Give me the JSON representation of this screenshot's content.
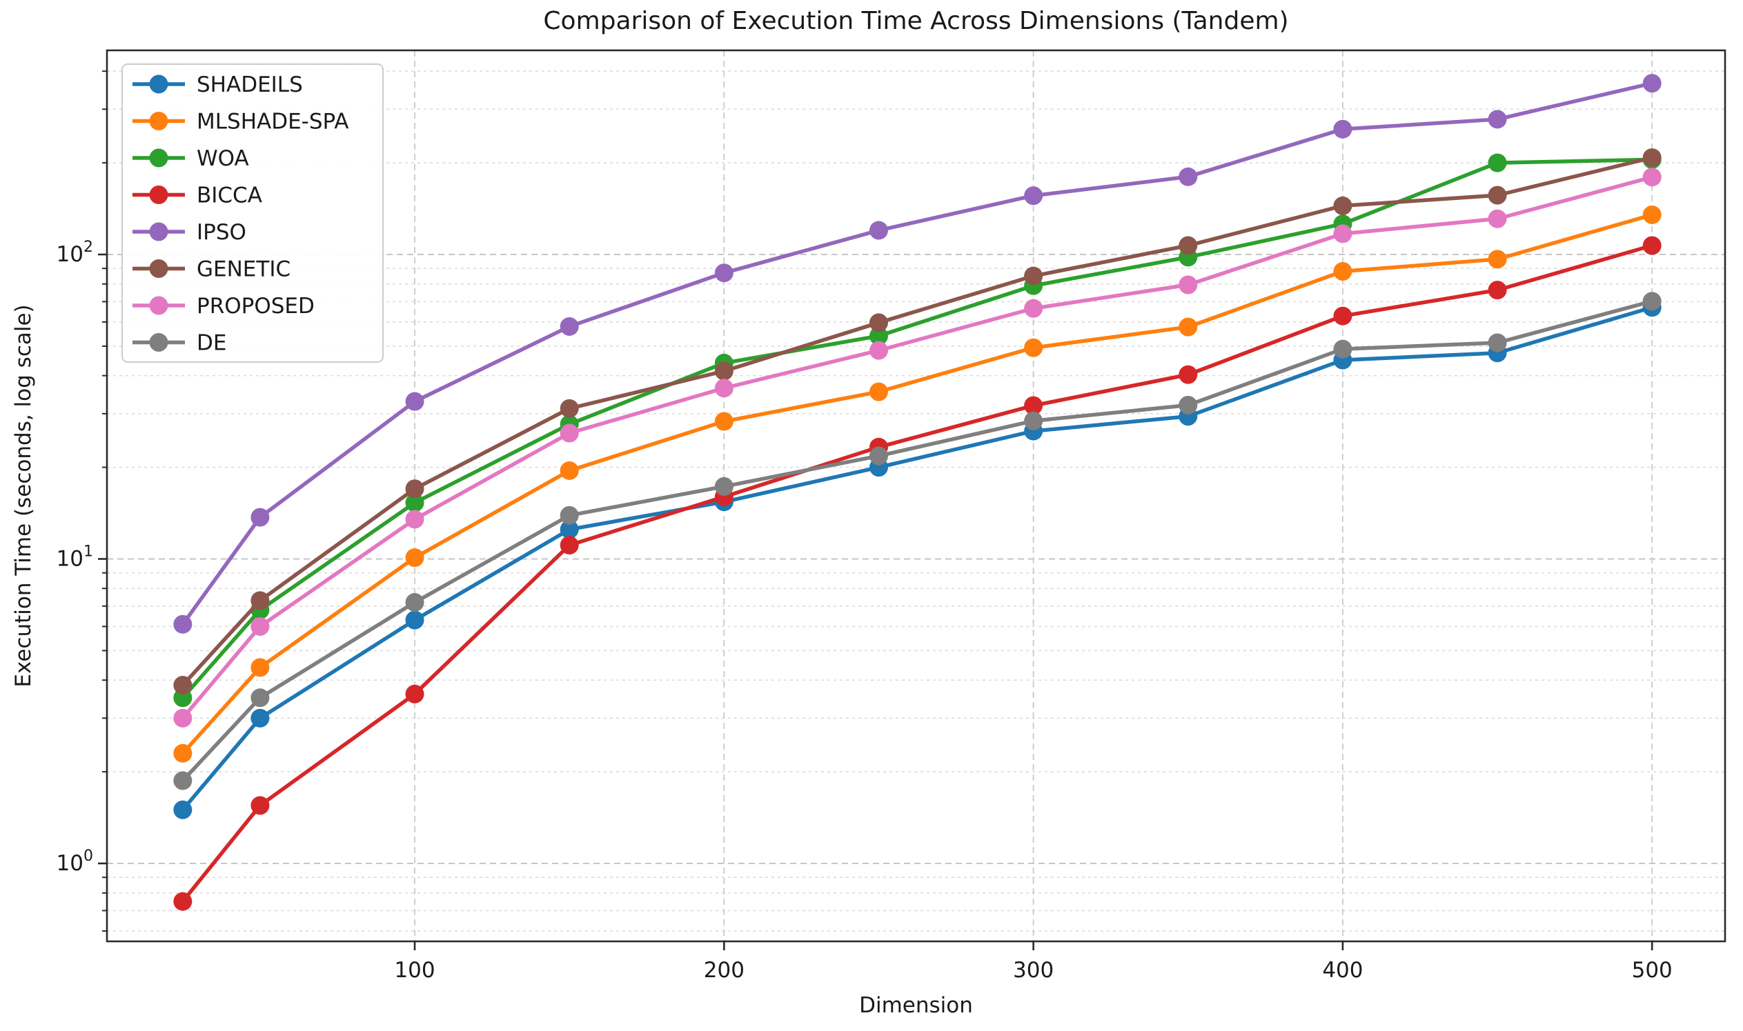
{
  "chart_data": {
    "type": "line",
    "title": "Comparison of Execution Time Across Dimensions (Tandem)",
    "xlabel": "Dimension",
    "ylabel": "Execution Time (seconds, log scale)",
    "x": [
      25,
      50,
      100,
      150,
      200,
      250,
      300,
      350,
      400,
      450,
      500
    ],
    "x_ticks": [
      100,
      200,
      300,
      400,
      500
    ],
    "y_scale": "log",
    "y_ticks": [
      {
        "value": 1,
        "base": "10",
        "exp": "0"
      },
      {
        "value": 10,
        "base": "10",
        "exp": "1"
      },
      {
        "value": 100,
        "base": "10",
        "exp": "2"
      }
    ],
    "xlim": [
      0.5,
      523.6
    ],
    "ylim": [
      0.55,
      467
    ],
    "grid": true,
    "legend_position": "upper left",
    "series": [
      {
        "name": "SHADEILS",
        "color": "#1f77b4",
        "values": [
          1.5,
          3.0,
          6.3,
          12.5,
          15.4,
          20.0,
          26.3,
          29.4,
          45.0,
          47.5,
          67.0
        ]
      },
      {
        "name": "MLSHADE-SPA",
        "color": "#ff7f0e",
        "values": [
          2.3,
          4.4,
          10.1,
          19.5,
          28.3,
          35.4,
          49.4,
          57.8,
          88.0,
          96.5,
          135.0
        ]
      },
      {
        "name": "WOA",
        "color": "#2ca02c",
        "values": [
          3.5,
          6.8,
          15.3,
          27.7,
          44.0,
          54.0,
          79.0,
          98.0,
          126.0,
          200.0,
          205.0
        ]
      },
      {
        "name": "BICCA",
        "color": "#d62728",
        "values": [
          0.75,
          1.55,
          3.6,
          11.1,
          16.0,
          23.3,
          31.9,
          40.3,
          62.8,
          76.4,
          107.0
        ]
      },
      {
        "name": "IPSO",
        "color": "#9467bd",
        "values": [
          6.1,
          13.7,
          32.9,
          58.0,
          87.0,
          120.0,
          156.0,
          180.0,
          258.0,
          278.0,
          365.0
        ]
      },
      {
        "name": "GENETIC",
        "color": "#8c564b",
        "values": [
          3.85,
          7.3,
          17.0,
          31.2,
          41.4,
          59.7,
          85.0,
          107.0,
          144.5,
          156.5,
          208.0
        ]
      },
      {
        "name": "PROPOSED",
        "color": "#e377c2",
        "values": [
          3.0,
          6.0,
          13.5,
          25.9,
          36.4,
          48.4,
          66.5,
          79.5,
          117.0,
          131.0,
          179.5
        ]
      },
      {
        "name": "DE",
        "color": "#7f7f7f",
        "values": [
          1.87,
          3.5,
          7.2,
          13.9,
          17.3,
          21.8,
          28.4,
          32.0,
          48.9,
          51.3,
          70.2
        ]
      }
    ]
  }
}
